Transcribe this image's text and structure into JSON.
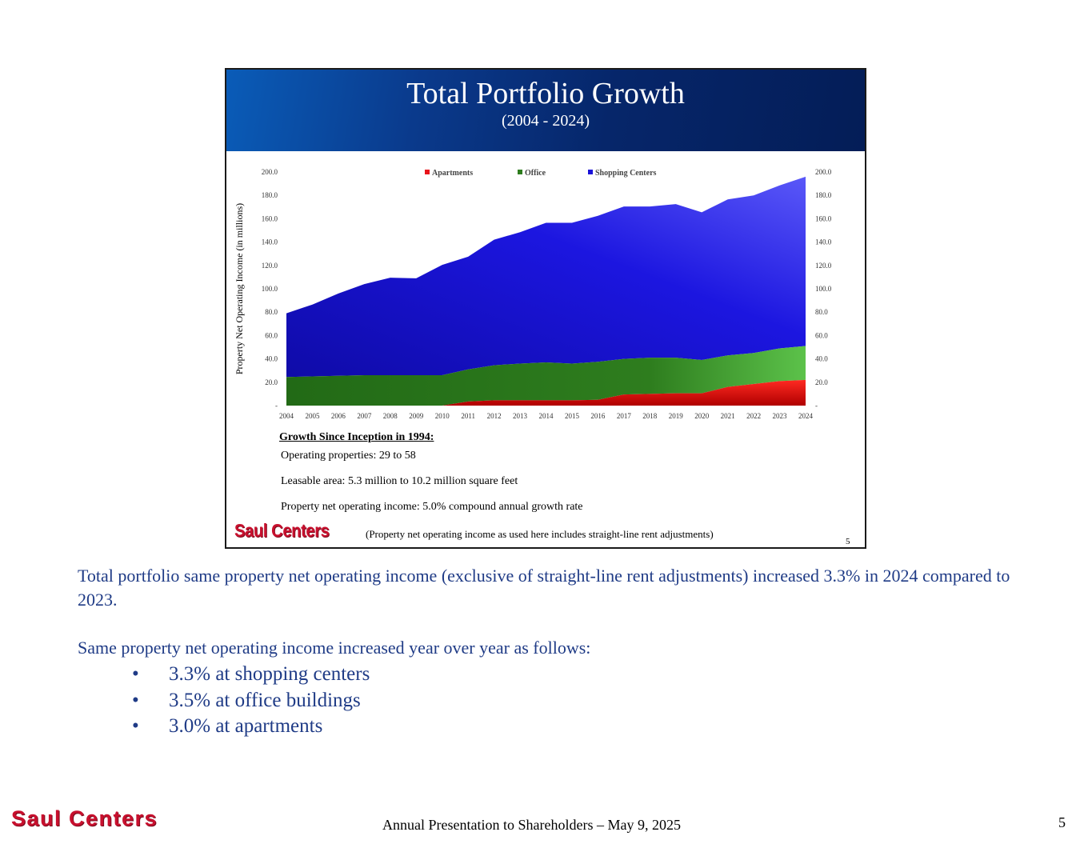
{
  "panel": {
    "title": "Total Portfolio Growth",
    "subtitle": "(2004 - 2024)",
    "growth_heading": "Growth Since Inception in 1994:",
    "growth_lines": [
      "Operating properties: 29 to 58",
      "Leasable area: 5.3 million to 10.2 million square feet",
      "Property net operating income: 5.0% compound annual growth rate"
    ],
    "logo_text": "Saul Centers",
    "note": "(Property net operating income as used here includes straight-line rent adjustments)",
    "page_number": "5"
  },
  "chart_data": {
    "type": "area",
    "stacked": true,
    "title": "",
    "xlabel": "",
    "ylabel": "Property Net Operating Income (in millions)",
    "ylim": [
      0,
      200
    ],
    "yticks": [
      0,
      20,
      40,
      60,
      80,
      100,
      120,
      140,
      160,
      180,
      200
    ],
    "ytick_labels": [
      "-",
      "20.0",
      "40.0",
      "60.0",
      "80.0",
      "100.0",
      "120.0",
      "140.0",
      "160.0",
      "180.0",
      "200.0"
    ],
    "dual_y_axis": true,
    "grid": false,
    "legend_position": "top-center",
    "x": [
      "2004",
      "2005",
      "2006",
      "2007",
      "2008",
      "2009",
      "2010",
      "2011",
      "2012",
      "2013",
      "2014",
      "2015",
      "2016",
      "2017",
      "2018",
      "2019",
      "2020",
      "2021",
      "2022",
      "2023",
      "2024"
    ],
    "series": [
      {
        "name": "Apartments",
        "color": "#e8141b",
        "values": [
          0,
          0,
          0,
          0,
          0,
          0,
          0,
          3.5,
          4.5,
          4.5,
          4.5,
          4.5,
          5,
          9.5,
          10,
          10.5,
          10.5,
          16,
          18.5,
          21,
          22
        ]
      },
      {
        "name": "Office",
        "color": "#2e7d1e",
        "values": [
          24.5,
          25,
          25.5,
          26,
          26,
          26,
          26,
          27.5,
          30,
          31.5,
          32.5,
          31.5,
          32.5,
          30.5,
          31,
          30.5,
          28.5,
          27,
          26.5,
          28,
          29
        ]
      },
      {
        "name": "Shopping Centers",
        "color": "#1a12d8",
        "values": [
          54.5,
          61.5,
          70.5,
          78,
          83.5,
          83,
          94.5,
          96.5,
          107.5,
          112.5,
          119.5,
          120.5,
          125,
          130.5,
          129.5,
          131.5,
          126.5,
          133.5,
          135,
          139.5,
          145
        ]
      }
    ]
  },
  "summary": {
    "paragraph": "Total portfolio same property net operating income (exclusive of straight-line rent adjustments) increased 3.3% in 2024 compared to 2023.",
    "lead": "Same property net operating income increased year over year as follows:",
    "bullet_symbol": "•",
    "bullets": [
      "3.3% at shopping centers",
      "3.5% at office buildings",
      "3.0% at apartments"
    ]
  },
  "footer": {
    "logo_text": "Saul Centers",
    "title": "Annual Presentation to Shareholders – May 9, 2025",
    "page_number": "5"
  }
}
